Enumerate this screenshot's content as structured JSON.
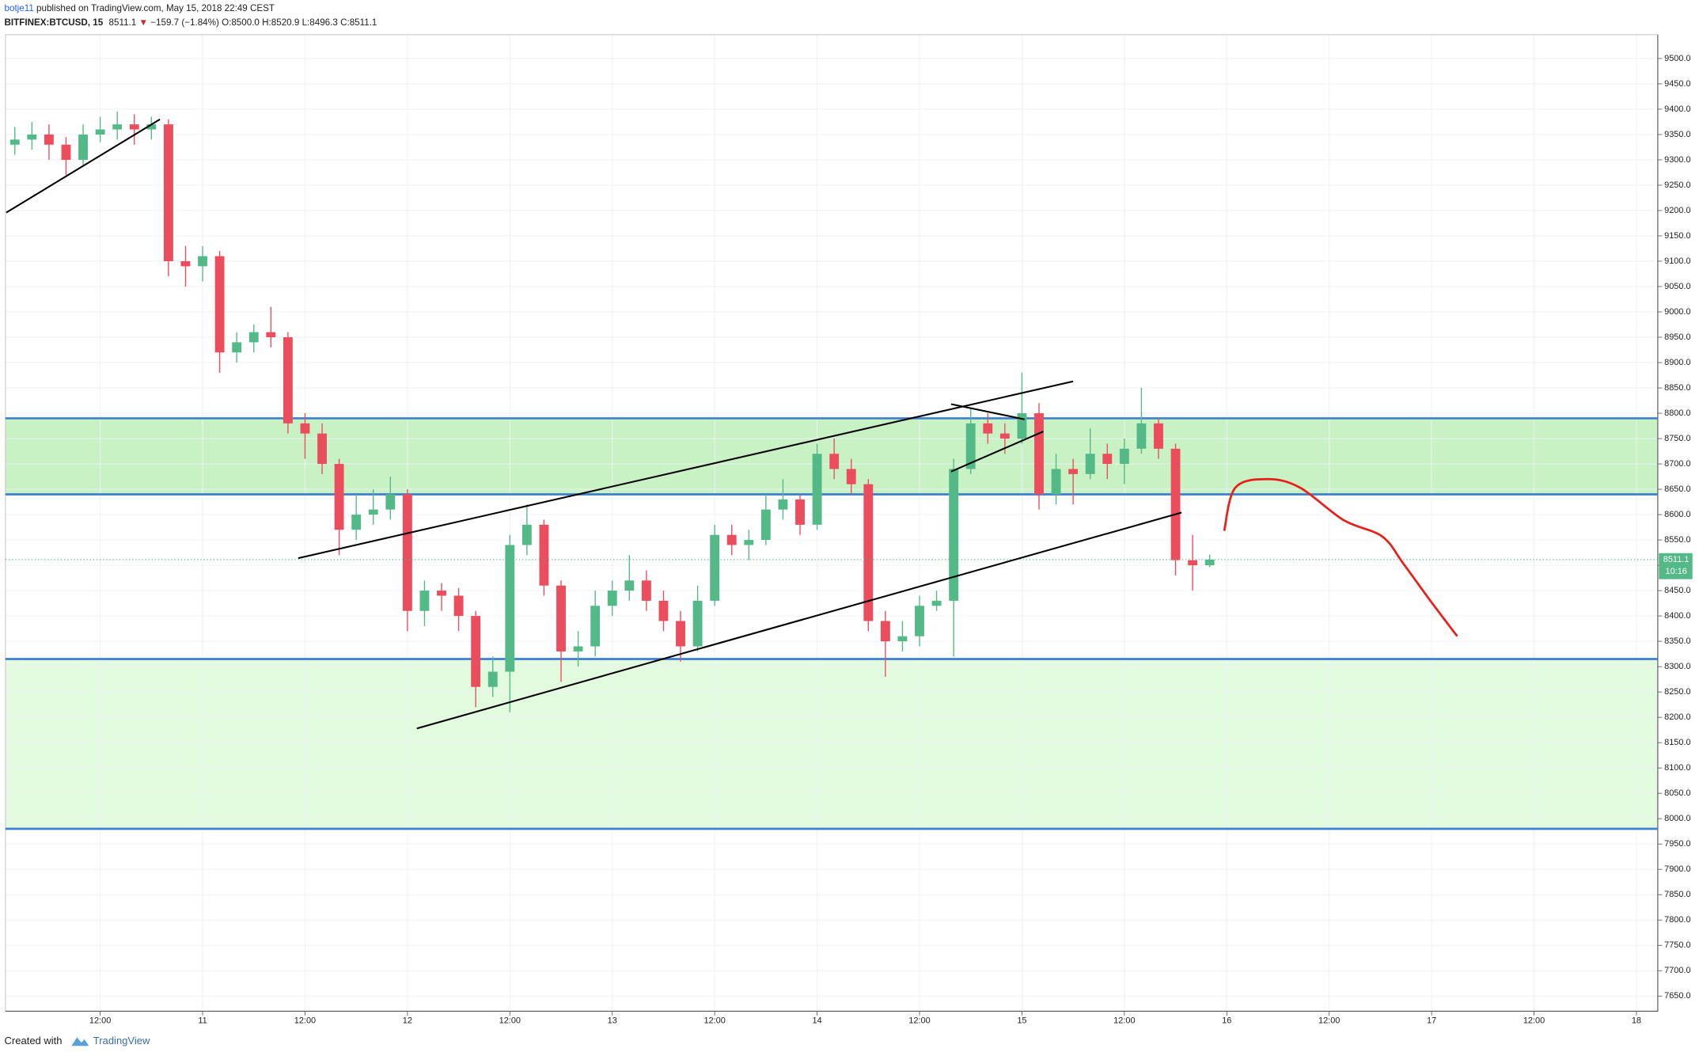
{
  "chart_data": {
    "type": "candlestick",
    "header": {
      "author": "botje11",
      "published": "published on TradingView.com, May 15, 2018 22:49 CEST"
    },
    "legend": {
      "symbol": "BITFINEX:BTCUSD, 15",
      "last": "8511.1",
      "arrow": "▼",
      "change": "−159.7 (−1.84%)",
      "open": "O:8500.0",
      "high": "H:8520.9",
      "low": "L:8496.3",
      "close": "C:8511.1"
    },
    "up_color": "#53b987",
    "down_color": "#eb4d5c",
    "x": [
      2,
      4,
      6,
      8,
      10,
      12,
      14,
      16,
      18,
      20,
      22,
      24,
      26,
      28,
      30,
      32,
      34,
      36,
      38,
      40,
      42,
      44,
      46,
      48,
      50,
      52,
      54,
      56,
      58,
      60,
      62,
      64,
      66,
      68,
      70,
      72,
      74,
      76,
      78,
      80,
      82,
      84,
      86,
      88,
      90,
      92,
      94,
      96,
      98,
      100,
      102,
      104,
      106,
      108,
      110,
      112,
      114,
      116,
      118,
      120,
      122,
      124,
      126,
      128,
      130,
      132,
      134,
      136,
      138,
      140,
      142
    ],
    "open": [
      9330,
      9340,
      9350,
      9330,
      9300,
      9350,
      9360,
      9370,
      9360,
      9370,
      9100,
      9090,
      9110,
      8920,
      8940,
      8960,
      8950,
      8780,
      8760,
      8700,
      8570,
      8600,
      8610,
      8640,
      8410,
      8450,
      8440,
      8400,
      8260,
      8290,
      8540,
      8580,
      8460,
      8330,
      8340,
      8420,
      8450,
      8470,
      8430,
      8390,
      8340,
      8430,
      8560,
      8540,
      8550,
      8610,
      8630,
      8580,
      8720,
      8690,
      8660,
      8390,
      8350,
      8360,
      8420,
      8430,
      8690,
      8780,
      8760,
      8750,
      8800,
      8640,
      8690,
      8680,
      8720,
      8700,
      8730,
      8780,
      8730,
      8510,
      8500
    ],
    "high": [
      9365,
      9375,
      9370,
      9345,
      9370,
      9385,
      9395,
      9390,
      9385,
      9380,
      9130,
      9130,
      9120,
      8960,
      8975,
      9010,
      8960,
      8800,
      8780,
      8710,
      8640,
      8650,
      8675,
      8650,
      8470,
      8465,
      8455,
      8410,
      8320,
      8560,
      8620,
      8590,
      8470,
      8370,
      8450,
      8470,
      8520,
      8490,
      8450,
      8410,
      8460,
      8580,
      8580,
      8570,
      8640,
      8670,
      8640,
      8740,
      8750,
      8710,
      8670,
      8410,
      8390,
      8440,
      8450,
      8710,
      8810,
      8800,
      8780,
      8880,
      8820,
      8720,
      8710,
      8770,
      8740,
      8750,
      8850,
      8790,
      8740,
      8560,
      8520.9
    ],
    "low": [
      9310,
      9320,
      9300,
      9270,
      9290,
      9335,
      9340,
      9330,
      9340,
      9070,
      9050,
      9060,
      8880,
      8900,
      8920,
      8930,
      8760,
      8710,
      8680,
      8520,
      8550,
      8580,
      8590,
      8370,
      8380,
      8410,
      8370,
      8220,
      8240,
      8210,
      8520,
      8440,
      8270,
      8300,
      8320,
      8400,
      8430,
      8410,
      8370,
      8310,
      8330,
      8420,
      8520,
      8510,
      8540,
      8590,
      8560,
      8570,
      8670,
      8640,
      8370,
      8280,
      8330,
      8340,
      8410,
      8320,
      8680,
      8740,
      8720,
      8740,
      8610,
      8620,
      8620,
      8670,
      8670,
      8660,
      8720,
      8710,
      8480,
      8450,
      8496.3
    ],
    "close": [
      9340,
      9350,
      9330,
      9300,
      9350,
      9360,
      9370,
      9360,
      9370,
      9100,
      9090,
      9110,
      8920,
      8940,
      8960,
      8950,
      8780,
      8760,
      8700,
      8570,
      8600,
      8610,
      8640,
      8410,
      8450,
      8440,
      8400,
      8260,
      8290,
      8540,
      8580,
      8460,
      8330,
      8340,
      8420,
      8450,
      8470,
      8430,
      8390,
      8340,
      8430,
      8560,
      8540,
      8550,
      8610,
      8630,
      8580,
      8720,
      8690,
      8660,
      8390,
      8350,
      8360,
      8420,
      8430,
      8690,
      8780,
      8760,
      8750,
      8800,
      8640,
      8690,
      8680,
      8720,
      8700,
      8730,
      8780,
      8730,
      8510,
      8500,
      8511.1
    ],
    "countdown": "10:16",
    "levels": [
      {
        "value": 8790,
        "color": "#3d7fd1"
      },
      {
        "value": 8640,
        "color": "#3d7fd1"
      },
      {
        "value": 8315,
        "color": "#3d7fd1"
      },
      {
        "value": 7980,
        "color": "#3d7fd1"
      }
    ],
    "zones": [
      {
        "from": 8640,
        "to": 8790,
        "color": "#c9f2c4"
      },
      {
        "from": 7980,
        "to": 8315,
        "color": "#e2fbdf"
      }
    ],
    "trendlines": [
      {
        "points": [
          [
            1,
            9196
          ],
          [
            19,
            9380
          ]
        ],
        "color": "#000000"
      },
      {
        "points": [
          [
            35.2,
            8514
          ],
          [
            126,
            8863
          ]
        ],
        "color": "#000000"
      },
      {
        "points": [
          [
            49.1,
            8178
          ],
          [
            138.7,
            8604
          ]
        ],
        "color": "#000000"
      },
      {
        "points": [
          [
            111.7,
            8818
          ],
          [
            120.3,
            8788
          ]
        ],
        "color": "#000000"
      },
      {
        "points": [
          [
            111.7,
            8685
          ],
          [
            122.5,
            8764
          ]
        ],
        "color": "#000000"
      }
    ],
    "projection": {
      "x": [
        143.7,
        145,
        148.8,
        152.6,
        157.7,
        162.2,
        164.7,
        167.9,
        171
      ],
      "values": [
        8568,
        8653,
        8670,
        8653,
        8589,
        8557,
        8503,
        8429,
        8360
      ],
      "color": "#e8201c"
    },
    "xlim": [
      0.9,
      194.5
    ],
    "ylim": [
      7620,
      9547
    ],
    "xticks": [
      {
        "value": 12,
        "label": "12:00"
      },
      {
        "value": 24,
        "label": "11"
      },
      {
        "value": 36,
        "label": "12:00"
      },
      {
        "value": 48,
        "label": "12"
      },
      {
        "value": 60,
        "label": "12:00"
      },
      {
        "value": 72,
        "label": "13"
      },
      {
        "value": 84,
        "label": "12:00"
      },
      {
        "value": 96,
        "label": "14"
      },
      {
        "value": 108,
        "label": "12:00"
      },
      {
        "value": 120,
        "label": "15"
      },
      {
        "value": 132,
        "label": "12:00"
      },
      {
        "value": 144,
        "label": "16"
      },
      {
        "value": 156,
        "label": "12:00"
      },
      {
        "value": 168,
        "label": "17"
      },
      {
        "value": 180,
        "label": "12:00"
      },
      {
        "value": 192,
        "label": "18"
      }
    ],
    "yticks": [
      {
        "value": 7650,
        "label": "7650.0"
      },
      {
        "value": 7700,
        "label": "7700.0"
      },
      {
        "value": 7750,
        "label": "7750.0"
      },
      {
        "value": 7800,
        "label": "7800.0"
      },
      {
        "value": 7850,
        "label": "7850.0"
      },
      {
        "value": 7900,
        "label": "7900.0"
      },
      {
        "value": 7950,
        "label": "7950.0"
      },
      {
        "value": 8000,
        "label": "8000.0"
      },
      {
        "value": 8050,
        "label": "8050.0"
      },
      {
        "value": 8100,
        "label": "8100.0"
      },
      {
        "value": 8150,
        "label": "8150.0"
      },
      {
        "value": 8200,
        "label": "8200.0"
      },
      {
        "value": 8250,
        "label": "8250.0"
      },
      {
        "value": 8300,
        "label": "8300.0"
      },
      {
        "value": 8350,
        "label": "8350.0"
      },
      {
        "value": 8400,
        "label": "8400.0"
      },
      {
        "value": 8450,
        "label": "8450.0"
      },
      {
        "value": 8500,
        "label": "8500.0"
      },
      {
        "value": 8550,
        "label": "8550.0"
      },
      {
        "value": 8600,
        "label": "8600.0"
      },
      {
        "value": 8650,
        "label": "8650.0"
      },
      {
        "value": 8700,
        "label": "8700.0"
      },
      {
        "value": 8750,
        "label": "8750.0"
      },
      {
        "value": 8800,
        "label": "8800.0"
      },
      {
        "value": 8850,
        "label": "8850.0"
      },
      {
        "value": 8900,
        "label": "8900.0"
      },
      {
        "value": 8950,
        "label": "8950.0"
      },
      {
        "value": 9000,
        "label": "9000.0"
      },
      {
        "value": 9050,
        "label": "9050.0"
      },
      {
        "value": 9100,
        "label": "9100.0"
      },
      {
        "value": 9150,
        "label": "9150.0"
      },
      {
        "value": 9200,
        "label": "9200.0"
      },
      {
        "value": 9250,
        "label": "9250.0"
      },
      {
        "value": 9300,
        "label": "9300.0"
      },
      {
        "value": 9350,
        "label": "9350.0"
      },
      {
        "value": 9400,
        "label": "9400.0"
      },
      {
        "value": 9450,
        "label": "9450.0"
      },
      {
        "value": 9500,
        "label": "9500.0"
      }
    ],
    "grid": true,
    "footer": {
      "created": "Created with",
      "brand": "TradingView"
    }
  }
}
